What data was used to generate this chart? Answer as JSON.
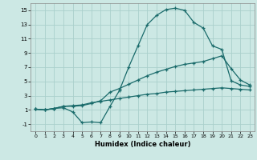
{
  "xlabel": "Humidex (Indice chaleur)",
  "background_color": "#cce8e4",
  "grid_color": "#aacfcb",
  "line_color": "#1a6b6b",
  "xlim": [
    -0.5,
    23.5
  ],
  "ylim": [
    -2.0,
    16.0
  ],
  "yticks": [
    -1,
    1,
    3,
    5,
    7,
    9,
    11,
    13,
    15
  ],
  "xticks": [
    0,
    1,
    2,
    3,
    4,
    5,
    6,
    7,
    8,
    9,
    10,
    11,
    12,
    13,
    14,
    15,
    16,
    17,
    18,
    19,
    20,
    21,
    22,
    23
  ],
  "line1_x": [
    0,
    1,
    2,
    3,
    4,
    5,
    6,
    7,
    8,
    9,
    10,
    11,
    12,
    13,
    14,
    15,
    16,
    17,
    18,
    19,
    20,
    21,
    22,
    23
  ],
  "line1_y": [
    1.1,
    1.0,
    1.2,
    1.3,
    0.7,
    -0.8,
    -0.7,
    -0.8,
    1.5,
    3.7,
    7.0,
    10.0,
    13.0,
    14.3,
    15.1,
    15.3,
    15.0,
    13.3,
    12.5,
    10.0,
    9.5,
    5.1,
    4.5,
    4.3
  ],
  "line2_x": [
    0,
    1,
    2,
    3,
    4,
    5,
    6,
    7,
    8,
    9,
    10,
    11,
    12,
    13,
    14,
    15,
    16,
    17,
    18,
    19,
    20,
    21,
    22,
    23
  ],
  "line2_y": [
    1.1,
    1.0,
    1.2,
    1.5,
    1.5,
    1.6,
    1.9,
    2.3,
    3.5,
    4.0,
    4.6,
    5.2,
    5.8,
    6.3,
    6.7,
    7.1,
    7.4,
    7.6,
    7.8,
    8.2,
    8.6,
    6.8,
    5.2,
    4.5
  ],
  "line3_x": [
    0,
    1,
    2,
    3,
    4,
    5,
    6,
    7,
    8,
    9,
    10,
    11,
    12,
    13,
    14,
    15,
    16,
    17,
    18,
    19,
    20,
    21,
    22,
    23
  ],
  "line3_y": [
    1.1,
    1.0,
    1.2,
    1.5,
    1.6,
    1.7,
    2.0,
    2.2,
    2.4,
    2.6,
    2.8,
    3.0,
    3.2,
    3.3,
    3.5,
    3.6,
    3.7,
    3.8,
    3.9,
    4.0,
    4.1,
    4.0,
    3.9,
    3.8
  ]
}
